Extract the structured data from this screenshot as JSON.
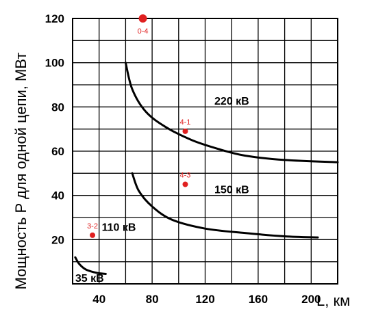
{
  "chart_data": {
    "type": "line",
    "xlabel": "L, км",
    "ylabel": "Мощность P для одной цепи, МВт",
    "xlim": [
      20,
      220
    ],
    "ylim": [
      0,
      120
    ],
    "x_ticks": [
      40,
      80,
      120,
      160,
      200
    ],
    "y_ticks": [
      20,
      40,
      60,
      80,
      100,
      120
    ],
    "grid": true,
    "series": [
      {
        "name": "35 кВ",
        "points": [
          [
            22,
            12
          ],
          [
            25,
            9
          ],
          [
            30,
            6.5
          ],
          [
            38,
            5
          ],
          [
            45,
            4.5
          ]
        ]
      },
      {
        "name": "110 кВ",
        "points": [
          [
            65,
            50
          ],
          [
            70,
            42
          ],
          [
            80,
            35
          ],
          [
            95,
            29
          ],
          [
            120,
            25
          ],
          [
            150,
            23
          ],
          [
            180,
            21.5
          ],
          [
            205,
            21
          ]
        ]
      },
      {
        "name": "150 кВ",
        "points": [
          [
            105,
            45
          ]
        ]
      },
      {
        "name": "220 кВ",
        "points": [
          [
            60,
            100
          ],
          [
            65,
            88
          ],
          [
            75,
            78
          ],
          [
            90,
            71
          ],
          [
            110,
            65
          ],
          [
            130,
            61
          ],
          [
            150,
            58
          ],
          [
            180,
            56
          ],
          [
            220,
            55
          ]
        ]
      }
    ],
    "markers": [
      {
        "label": "0-4",
        "x": 73,
        "y": 120,
        "color": "#e02020",
        "big": true
      },
      {
        "label": "4-1",
        "x": 105,
        "y": 69,
        "color": "#e02020",
        "big": false
      },
      {
        "label": "4-3",
        "x": 105,
        "y": 45,
        "color": "#e02020",
        "big": false
      },
      {
        "label": "3-2",
        "x": 35,
        "y": 22,
        "color": "#e02020",
        "big": false
      }
    ],
    "curve_labels": [
      {
        "text": "220 кВ",
        "x": 127,
        "y": 81
      },
      {
        "text": "150 кВ",
        "x": 127,
        "y": 41
      },
      {
        "text": "110 кВ",
        "x": 42,
        "y": 24
      },
      {
        "text": "35 кВ",
        "x": 22,
        "y": 1
      }
    ]
  }
}
